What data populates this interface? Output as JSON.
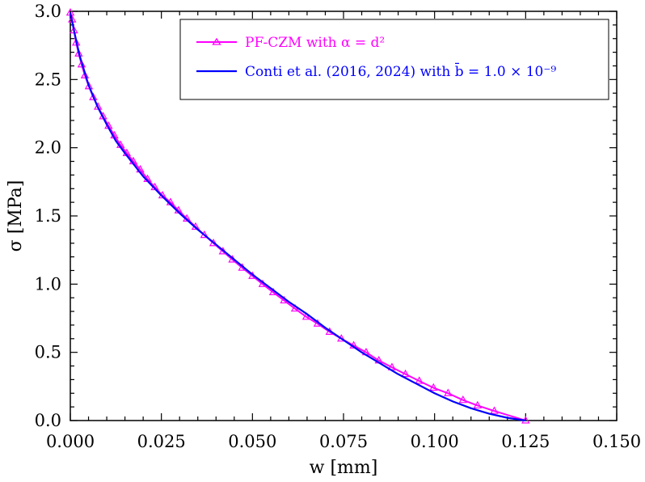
{
  "chart_data": {
    "type": "line",
    "xlabel": "w [mm]",
    "ylabel": "σ [MPa]",
    "xlim": [
      0,
      0.15
    ],
    "ylim": [
      0,
      3.0
    ],
    "x_ticks": [
      "0.000",
      "0.025",
      "0.050",
      "0.075",
      "0.100",
      "0.125",
      "0.150"
    ],
    "y_ticks": [
      "0.0",
      "0.5",
      "1.0",
      "1.5",
      "2.0",
      "2.5",
      "3.0"
    ],
    "legend_position": "top-right",
    "grid": false,
    "series": [
      {
        "name": "PF-CZM with α = d²",
        "color": "#ff00ff",
        "marker": "triangle",
        "x": [
          0.0,
          0.0005,
          0.001,
          0.0016,
          0.0023,
          0.0031,
          0.004,
          0.0051,
          0.0063,
          0.0076,
          0.009,
          0.0105,
          0.0121,
          0.0138,
          0.0155,
          0.0173,
          0.0192,
          0.0212,
          0.0232,
          0.0253,
          0.0275,
          0.0297,
          0.032,
          0.0344,
          0.0368,
          0.0393,
          0.0419,
          0.0445,
          0.0472,
          0.05,
          0.0528,
          0.0557,
          0.0587,
          0.0617,
          0.0648,
          0.0679,
          0.0712,
          0.0744,
          0.0778,
          0.0812,
          0.0847,
          0.0883,
          0.092,
          0.0958,
          0.0997,
          0.1037,
          0.1078,
          0.1118,
          0.1164,
          0.125
        ],
        "y": [
          2.99,
          2.94,
          2.86,
          2.77,
          2.69,
          2.61,
          2.53,
          2.45,
          2.37,
          2.3,
          2.23,
          2.16,
          2.09,
          2.02,
          1.96,
          1.9,
          1.84,
          1.77,
          1.71,
          1.65,
          1.6,
          1.54,
          1.48,
          1.42,
          1.36,
          1.3,
          1.24,
          1.18,
          1.12,
          1.06,
          1.0,
          0.94,
          0.88,
          0.82,
          0.76,
          0.71,
          0.65,
          0.6,
          0.55,
          0.5,
          0.44,
          0.39,
          0.34,
          0.29,
          0.24,
          0.2,
          0.15,
          0.11,
          0.07,
          0.0
        ]
      },
      {
        "name": "Conti et al. (2016, 2024) with b̄ = 1.0 × 10⁻⁹",
        "color": "#0000ff",
        "marker": "none",
        "x": [
          0.0,
          0.001,
          0.0025,
          0.005,
          0.0075,
          0.01,
          0.0125,
          0.015,
          0.02,
          0.025,
          0.03,
          0.035,
          0.04,
          0.045,
          0.05,
          0.055,
          0.06,
          0.065,
          0.07,
          0.075,
          0.08,
          0.085,
          0.09,
          0.095,
          0.1,
          0.105,
          0.11,
          0.115,
          0.12,
          0.125
        ],
        "y": [
          2.99,
          2.86,
          2.68,
          2.46,
          2.3,
          2.17,
          2.05,
          1.96,
          1.79,
          1.65,
          1.52,
          1.4,
          1.29,
          1.18,
          1.07,
          0.97,
          0.87,
          0.78,
          0.68,
          0.59,
          0.5,
          0.42,
          0.34,
          0.27,
          0.2,
          0.14,
          0.09,
          0.05,
          0.02,
          0.0
        ]
      }
    ]
  }
}
